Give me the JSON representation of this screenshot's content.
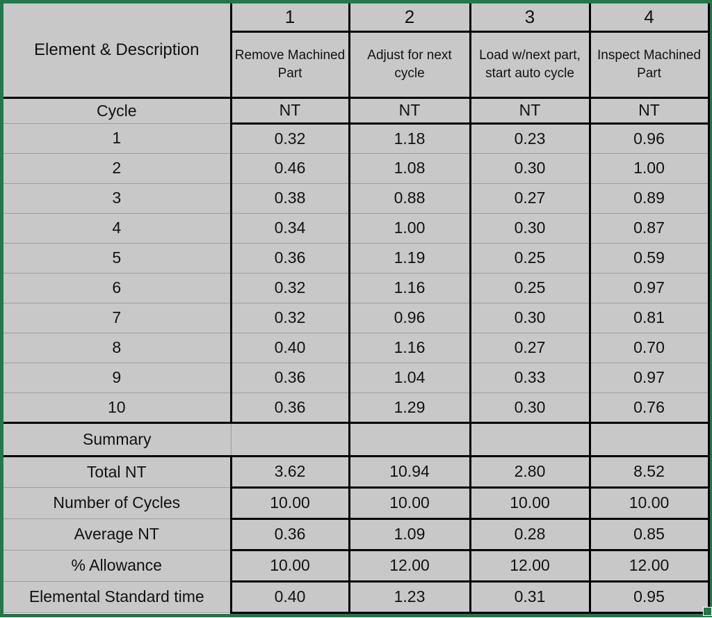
{
  "table": {
    "corner_label": "Element & Description",
    "element_numbers": [
      "1",
      "2",
      "3",
      "4"
    ],
    "element_descriptions": [
      "Remove Machined Part",
      "Adjust for next cycle",
      "Load w/next part, start auto cycle",
      "Inspect Machined Part"
    ],
    "cycle_header": "Cycle",
    "nt_header": "NT",
    "cycles": [
      {
        "cycle": "1",
        "values": [
          "0.32",
          "1.18",
          "0.23",
          "0.96"
        ]
      },
      {
        "cycle": "2",
        "values": [
          "0.46",
          "1.08",
          "0.30",
          "1.00"
        ]
      },
      {
        "cycle": "3",
        "values": [
          "0.38",
          "0.88",
          "0.27",
          "0.89"
        ]
      },
      {
        "cycle": "4",
        "values": [
          "0.34",
          "1.00",
          "0.30",
          "0.87"
        ]
      },
      {
        "cycle": "5",
        "values": [
          "0.36",
          "1.19",
          "0.25",
          "0.59"
        ]
      },
      {
        "cycle": "6",
        "values": [
          "0.32",
          "1.16",
          "0.25",
          "0.97"
        ]
      },
      {
        "cycle": "7",
        "values": [
          "0.32",
          "0.96",
          "0.30",
          "0.81"
        ]
      },
      {
        "cycle": "8",
        "values": [
          "0.40",
          "1.16",
          "0.27",
          "0.70"
        ]
      },
      {
        "cycle": "9",
        "values": [
          "0.36",
          "1.04",
          "0.33",
          "0.97"
        ]
      },
      {
        "cycle": "10",
        "values": [
          "0.36",
          "1.29",
          "0.30",
          "0.76"
        ]
      }
    ],
    "summary_title": "Summary",
    "summary_rows": [
      {
        "label": "Total NT",
        "values": [
          "3.62",
          "10.94",
          "2.80",
          "8.52"
        ]
      },
      {
        "label": "Number of Cycles",
        "values": [
          "10.00",
          "10.00",
          "10.00",
          "10.00"
        ]
      },
      {
        "label": "Average NT",
        "values": [
          "0.36",
          "1.09",
          "0.28",
          "0.85"
        ]
      },
      {
        "label": "% Allowance",
        "values": [
          "10.00",
          "12.00",
          "12.00",
          "12.00"
        ]
      },
      {
        "label": "Elemental Standard time",
        "values": [
          "0.40",
          "1.23",
          "0.31",
          "0.95"
        ]
      }
    ]
  },
  "colors": {
    "selection_green": "#26754B",
    "cell_gray": "#C8C8C8",
    "grid_gray": "#9E9E9E",
    "border_black": "#000000",
    "corner_white": "#FFFFFF"
  }
}
